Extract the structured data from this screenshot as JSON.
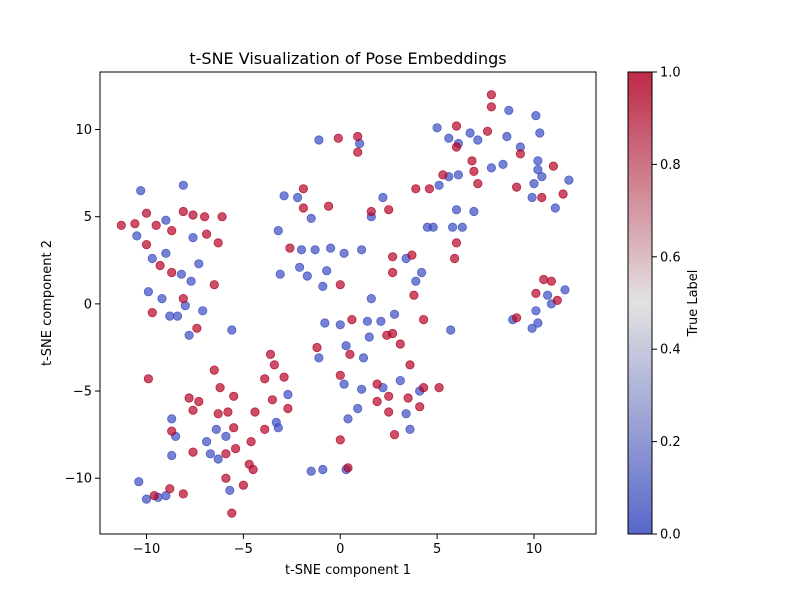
{
  "chart_data": {
    "type": "scatter",
    "title": "t-SNE Visualization of Pose Embeddings",
    "xlabel": "t-SNE component 1",
    "ylabel": "t-SNE component 2",
    "xlim": [
      -12.4,
      13.2
    ],
    "ylim": [
      -13.2,
      13.3
    ],
    "xticks": [
      -10,
      -5,
      0,
      5,
      10
    ],
    "yticks": [
      -10,
      -5,
      0,
      5,
      10
    ],
    "grid": false,
    "colorbar": {
      "label": "True Label",
      "range": [
        0.0,
        1.0
      ],
      "ticks": [
        "0.0",
        "0.2",
        "0.4",
        "0.6",
        "0.8",
        "1.0"
      ],
      "colormap": "coolwarm",
      "low_color": "#3b4cc0",
      "mid_color": "#dddddd",
      "high_color": "#b40426"
    },
    "marker_alpha": 0.7,
    "series": [
      {
        "label_value": 0,
        "color": "#3b4cc0",
        "points": [
          [
            -10.3,
            6.5
          ],
          [
            -8.1,
            6.8
          ],
          [
            -10.5,
            3.9
          ],
          [
            -9.7,
            2.6
          ],
          [
            -9.0,
            2.9
          ],
          [
            -9.0,
            4.8
          ],
          [
            -8.2,
            1.7
          ],
          [
            -7.6,
            3.8
          ],
          [
            -7.3,
            2.3
          ],
          [
            -7.7,
            1.3
          ],
          [
            -9.9,
            0.7
          ],
          [
            -9.2,
            0.3
          ],
          [
            -8.8,
            -0.7
          ],
          [
            -8.4,
            -0.7
          ],
          [
            -8.0,
            -0.1
          ],
          [
            -7.1,
            -0.4
          ],
          [
            -7.8,
            -1.8
          ],
          [
            -5.6,
            -1.5
          ],
          [
            -8.7,
            -6.6
          ],
          [
            -8.5,
            -7.6
          ],
          [
            -8.7,
            -8.7
          ],
          [
            -6.9,
            -7.9
          ],
          [
            -6.7,
            -8.6
          ],
          [
            -6.4,
            -7.2
          ],
          [
            -6.3,
            -8.9
          ],
          [
            -5.9,
            -7.6
          ],
          [
            -5.7,
            -10.7
          ],
          [
            -10.4,
            -10.2
          ],
          [
            -10.0,
            -11.2
          ],
          [
            -9.4,
            -11.1
          ],
          [
            -9.0,
            -11.0
          ],
          [
            -3.3,
            -6.8
          ],
          [
            -3.2,
            -7.1
          ],
          [
            -2.7,
            -5.2
          ],
          [
            -3.2,
            4.2
          ],
          [
            -2.9,
            6.2
          ],
          [
            -2.2,
            6.1
          ],
          [
            -1.5,
            4.9
          ],
          [
            -2.0,
            3.1
          ],
          [
            -1.3,
            3.1
          ],
          [
            -0.5,
            3.2
          ],
          [
            -2.1,
            2.1
          ],
          [
            -1.7,
            1.6
          ],
          [
            -0.7,
            1.9
          ],
          [
            -0.9,
            1.0
          ],
          [
            -3.1,
            1.7
          ],
          [
            -1.1,
            9.4
          ],
          [
            1.0,
            9.2
          ],
          [
            0.2,
            2.9
          ],
          [
            1.1,
            3.1
          ],
          [
            1.6,
            5.0
          ],
          [
            2.2,
            6.1
          ],
          [
            1.6,
            0.3
          ],
          [
            -0.8,
            -1.1
          ],
          [
            0.0,
            -1.2
          ],
          [
            1.4,
            -1.0
          ],
          [
            2.1,
            -1.0
          ],
          [
            1.5,
            -1.9
          ],
          [
            0.3,
            -2.4
          ],
          [
            -1.1,
            -3.1
          ],
          [
            1.2,
            -3.1
          ],
          [
            0.2,
            -4.6
          ],
          [
            1.1,
            -4.9
          ],
          [
            2.2,
            -4.8
          ],
          [
            3.1,
            -4.4
          ],
          [
            0.4,
            -6.6
          ],
          [
            0.9,
            -6.0
          ],
          [
            3.4,
            -6.3
          ],
          [
            3.6,
            -7.2
          ],
          [
            4.1,
            -5.0
          ],
          [
            -1.5,
            -9.6
          ],
          [
            -0.9,
            -9.5
          ],
          [
            0.3,
            -9.5
          ],
          [
            2.8,
            -0.6
          ],
          [
            3.4,
            2.6
          ],
          [
            3.9,
            1.3
          ],
          [
            4.2,
            1.8
          ],
          [
            4.5,
            4.4
          ],
          [
            4.8,
            4.4
          ],
          [
            5.0,
            10.1
          ],
          [
            5.6,
            9.5
          ],
          [
            6.1,
            9.2
          ],
          [
            6.7,
            9.8
          ],
          [
            7.1,
            9.4
          ],
          [
            8.7,
            11.1
          ],
          [
            10.1,
            10.8
          ],
          [
            9.3,
            9.0
          ],
          [
            10.3,
            9.8
          ],
          [
            8.6,
            9.6
          ],
          [
            5.1,
            6.8
          ],
          [
            5.6,
            7.3
          ],
          [
            6.1,
            7.4
          ],
          [
            7.8,
            7.8
          ],
          [
            8.4,
            8.0
          ],
          [
            10.2,
            8.2
          ],
          [
            10.2,
            7.7
          ],
          [
            10.4,
            7.3
          ],
          [
            10.0,
            6.9
          ],
          [
            9.9,
            6.1
          ],
          [
            11.1,
            5.5
          ],
          [
            11.8,
            7.1
          ],
          [
            5.8,
            4.4
          ],
          [
            6.0,
            5.4
          ],
          [
            6.3,
            4.4
          ],
          [
            6.9,
            5.3
          ],
          [
            5.7,
            -1.5
          ],
          [
            8.9,
            -0.9
          ],
          [
            9.9,
            -1.4
          ],
          [
            10.1,
            -0.4
          ],
          [
            10.2,
            -1.1
          ],
          [
            10.7,
            0.5
          ],
          [
            10.9,
            0.0
          ],
          [
            11.6,
            0.8
          ]
        ]
      },
      {
        "label_value": 1,
        "color": "#b40426",
        "points": [
          [
            -11.3,
            4.5
          ],
          [
            -10.6,
            4.6
          ],
          [
            -10.0,
            5.2
          ],
          [
            -9.5,
            4.5
          ],
          [
            -8.7,
            4.2
          ],
          [
            -8.1,
            5.3
          ],
          [
            -7.6,
            5.1
          ],
          [
            -7.0,
            5.0
          ],
          [
            -6.9,
            4.0
          ],
          [
            -6.1,
            5.0
          ],
          [
            -6.3,
            3.5
          ],
          [
            -10.0,
            3.4
          ],
          [
            -9.3,
            2.2
          ],
          [
            -8.7,
            1.8
          ],
          [
            -6.5,
            1.1
          ],
          [
            -9.7,
            -0.5
          ],
          [
            -8.1,
            0.3
          ],
          [
            -7.4,
            -1.4
          ],
          [
            -9.9,
            -4.3
          ],
          [
            -7.8,
            -5.4
          ],
          [
            -7.3,
            -5.6
          ],
          [
            -7.6,
            -6.1
          ],
          [
            -6.5,
            -3.8
          ],
          [
            -6.2,
            -4.8
          ],
          [
            -5.8,
            -6.2
          ],
          [
            -6.3,
            -6.3
          ],
          [
            -5.5,
            -5.3
          ],
          [
            -5.5,
            -7.1
          ],
          [
            -5.4,
            -8.3
          ],
          [
            -8.7,
            -7.3
          ],
          [
            -7.6,
            -8.5
          ],
          [
            -5.9,
            -8.6
          ],
          [
            -5.9,
            -10.0
          ],
          [
            -5.0,
            -10.4
          ],
          [
            -4.7,
            -9.2
          ],
          [
            -4.5,
            -9.5
          ],
          [
            -4.6,
            -7.9
          ],
          [
            -4.4,
            -6.2
          ],
          [
            -3.9,
            -7.2
          ],
          [
            -3.5,
            -5.5
          ],
          [
            -3.9,
            -4.3
          ],
          [
            -3.6,
            -2.9
          ],
          [
            -3.4,
            -3.5
          ],
          [
            -2.9,
            -4.2
          ],
          [
            -2.7,
            -6.0
          ],
          [
            -8.8,
            -10.6
          ],
          [
            -9.6,
            -11.0
          ],
          [
            -8.1,
            -10.9
          ],
          [
            -5.6,
            -12.0
          ],
          [
            -2.6,
            3.2
          ],
          [
            -1.9,
            6.6
          ],
          [
            -1.9,
            5.5
          ],
          [
            -0.6,
            5.6
          ],
          [
            -0.1,
            9.5
          ],
          [
            0.9,
            9.6
          ],
          [
            0.9,
            8.7
          ],
          [
            0.0,
            1.1
          ],
          [
            1.6,
            5.3
          ],
          [
            2.5,
            5.4
          ],
          [
            2.7,
            2.7
          ],
          [
            2.7,
            1.8
          ],
          [
            3.7,
            2.8
          ],
          [
            3.9,
            6.6
          ],
          [
            4.6,
            6.6
          ],
          [
            0.6,
            -0.9
          ],
          [
            0.5,
            -2.9
          ],
          [
            2.4,
            -1.8
          ],
          [
            2.7,
            -1.7
          ],
          [
            3.1,
            -2.3
          ],
          [
            3.6,
            -3.5
          ],
          [
            -1.2,
            -2.5
          ],
          [
            0.0,
            -4.1
          ],
          [
            1.9,
            -4.6
          ],
          [
            1.9,
            -5.6
          ],
          [
            2.5,
            -5.3
          ],
          [
            2.5,
            -6.2
          ],
          [
            3.5,
            -5.4
          ],
          [
            2.8,
            -7.5
          ],
          [
            4.1,
            -5.9
          ],
          [
            4.3,
            -4.8
          ],
          [
            5.1,
            -4.8
          ],
          [
            4.3,
            -0.9
          ],
          [
            3.8,
            0.5
          ],
          [
            0.0,
            -7.8
          ],
          [
            0.4,
            -9.4
          ],
          [
            5.9,
            2.6
          ],
          [
            6.0,
            3.5
          ],
          [
            5.3,
            7.4
          ],
          [
            6.0,
            10.2
          ],
          [
            6.0,
            9.0
          ],
          [
            6.8,
            8.2
          ],
          [
            6.9,
            7.6
          ],
          [
            7.1,
            6.9
          ],
          [
            7.6,
            9.9
          ],
          [
            7.8,
            11.3
          ],
          [
            7.8,
            12.0
          ],
          [
            9.1,
            6.7
          ],
          [
            9.3,
            8.6
          ],
          [
            10.4,
            6.1
          ],
          [
            11.0,
            7.9
          ],
          [
            11.5,
            6.3
          ],
          [
            9.1,
            -0.8
          ],
          [
            10.1,
            0.6
          ],
          [
            10.5,
            1.4
          ],
          [
            10.9,
            1.3
          ],
          [
            11.2,
            0.2
          ]
        ]
      }
    ]
  }
}
